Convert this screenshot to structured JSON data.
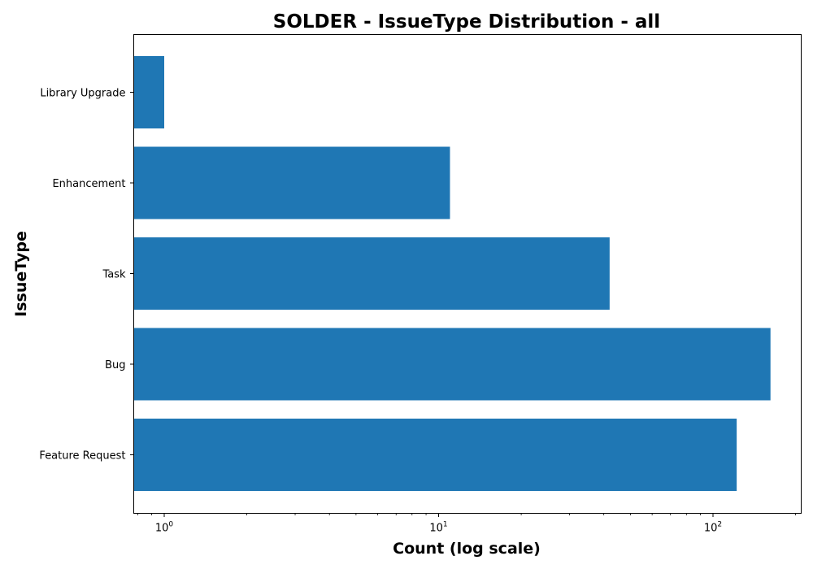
{
  "chart_data": {
    "type": "bar",
    "orientation": "horizontal",
    "title": "SOLDER - IssueType Distribution - all",
    "xlabel": "Count (log scale)",
    "ylabel": "IssueType",
    "x_scale": "log",
    "xlim": [
      0.8,
      200
    ],
    "x_ticks": [
      {
        "base": "10",
        "exp": "0",
        "value": 1
      },
      {
        "base": "10",
        "exp": "1",
        "value": 10
      },
      {
        "base": "10",
        "exp": "2",
        "value": 100
      }
    ],
    "categories": [
      "Feature Request",
      "Bug",
      "Task",
      "Enhancement",
      "Library Upgrade"
    ],
    "values": [
      122,
      162,
      42,
      11,
      1
    ],
    "bar_color": "#1f77b4",
    "grid": false,
    "legend": "none"
  }
}
